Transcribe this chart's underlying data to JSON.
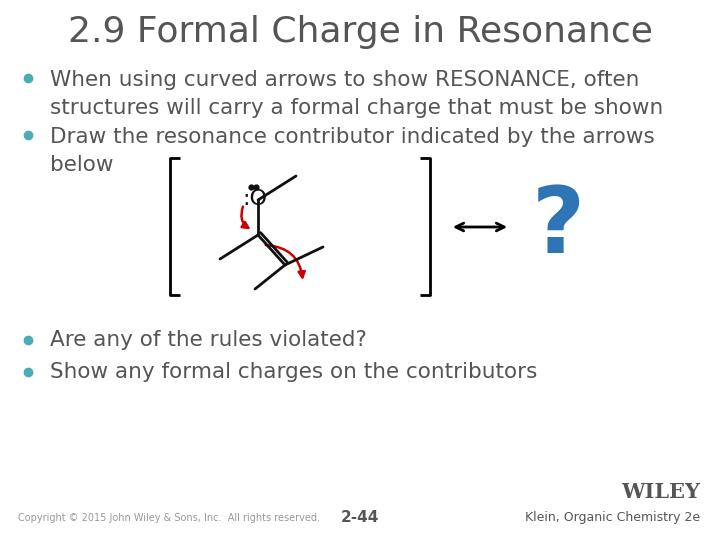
{
  "title": "2.9 Formal Charge in Resonance",
  "title_color": "#555555",
  "title_fontsize": 26,
  "background_color": "#ffffff",
  "bullet_color": "#4aacb4",
  "text_color": "#555555",
  "bullet_fontsize": 15.5,
  "bullet_small_fontsize": 8,
  "bullets": [
    "When using curved arrows to show RESONANCE, often\nstructures will carry a formal charge that must be shown",
    "Draw the resonance contributor indicated by the arrows\nbelow"
  ],
  "bullets_bottom": [
    "Are any of the rules violated?",
    "Show any formal charges on the contributors"
  ],
  "footer_left": "Copyright © 2015 John Wiley & Sons, Inc.  All rights reserved.",
  "footer_center": "2-44",
  "footer_right": "Klein, Organic Chemistry 2e",
  "wiley_text": "WILEY",
  "curved_arrow_color": "#cc0000",
  "question_mark_color": "#2e75b6",
  "bracket_color": "#000000",
  "bond_color": "#111111"
}
